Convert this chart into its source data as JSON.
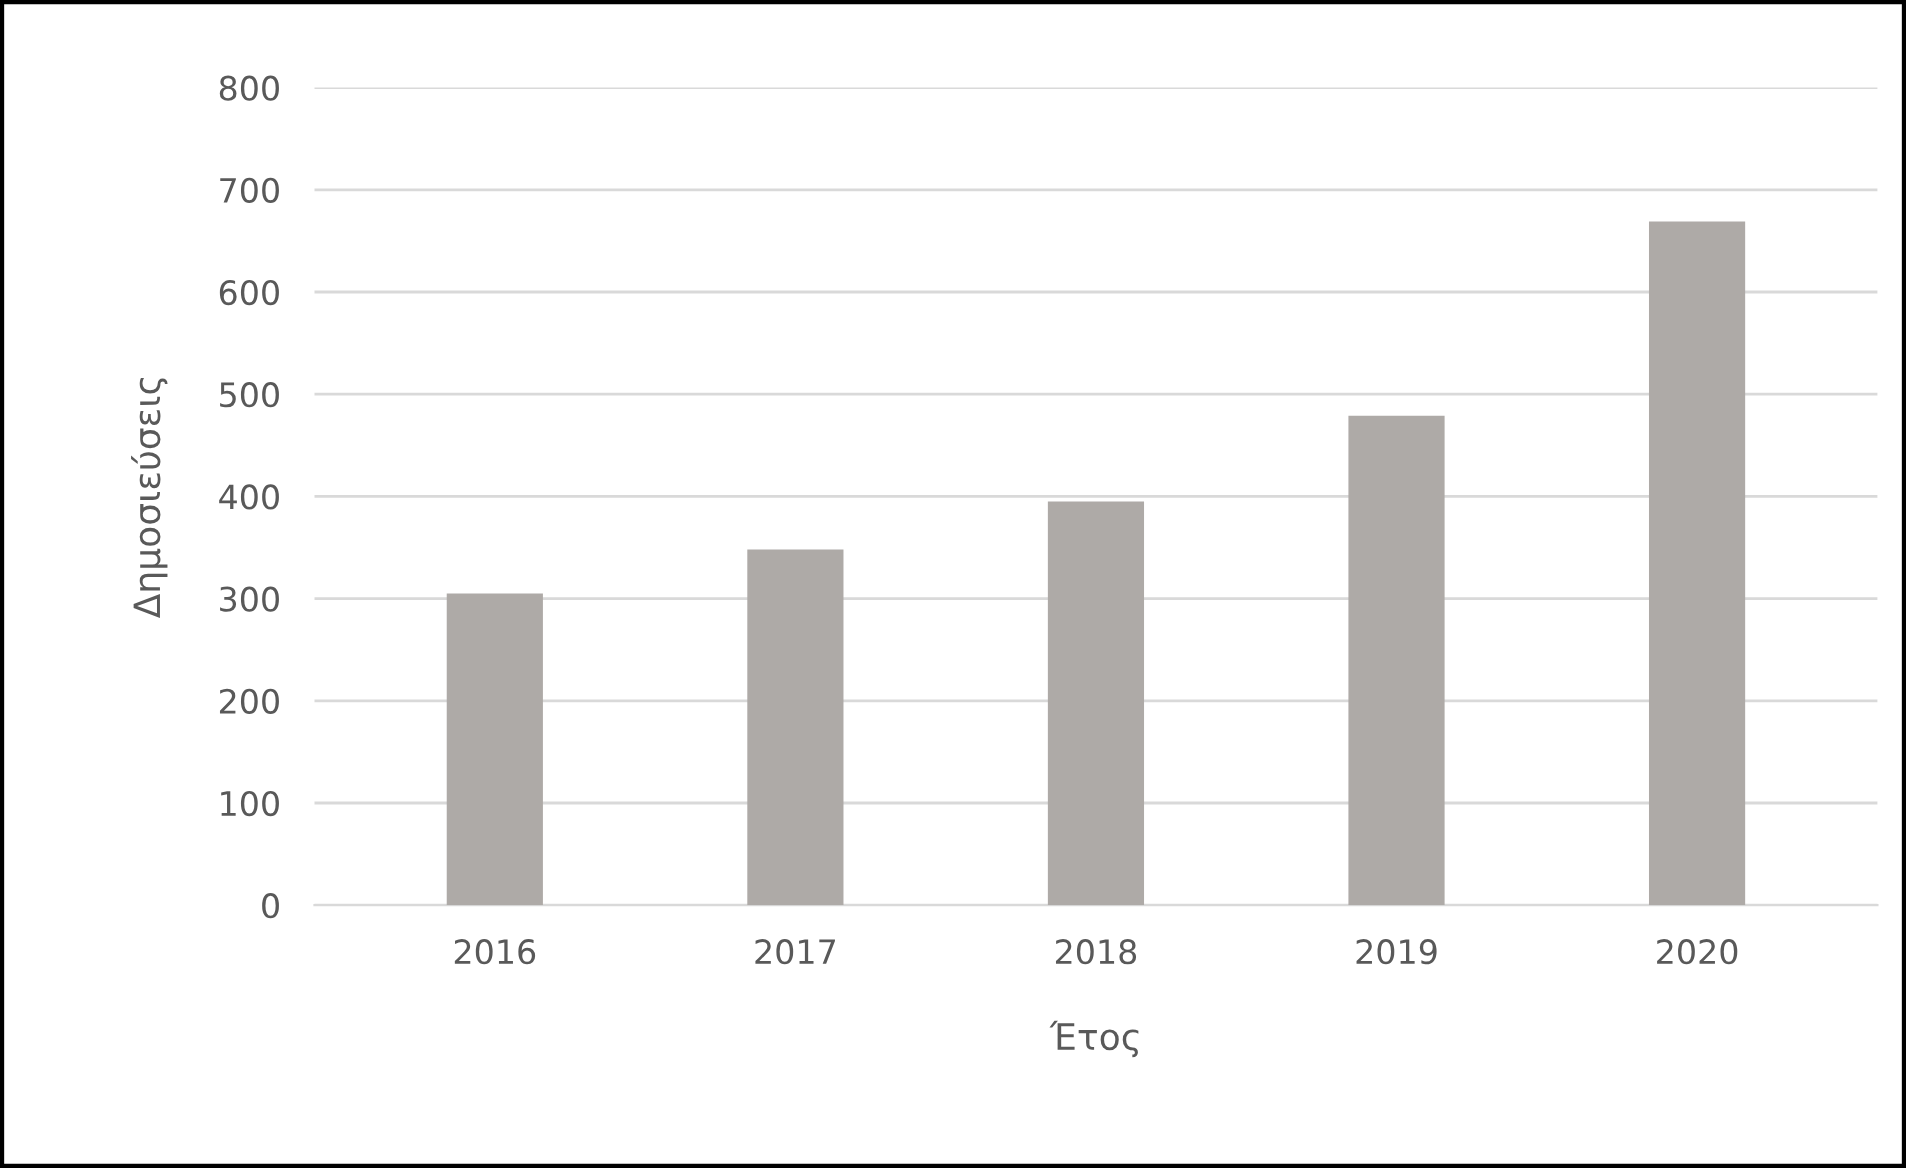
{
  "chart_data": {
    "type": "bar",
    "xlabel": "Έτος",
    "ylabel": "Δημοσιεύσεις",
    "categories": [
      "2016",
      "2017",
      "2018",
      "2019",
      "2020"
    ],
    "values": [
      305,
      348,
      395,
      479,
      669
    ],
    "color": "#aeaaa7",
    "ylim": [
      0,
      800
    ],
    "yticks": [
      0,
      100,
      200,
      300,
      400,
      500,
      600,
      700,
      800
    ],
    "grid": "y"
  }
}
